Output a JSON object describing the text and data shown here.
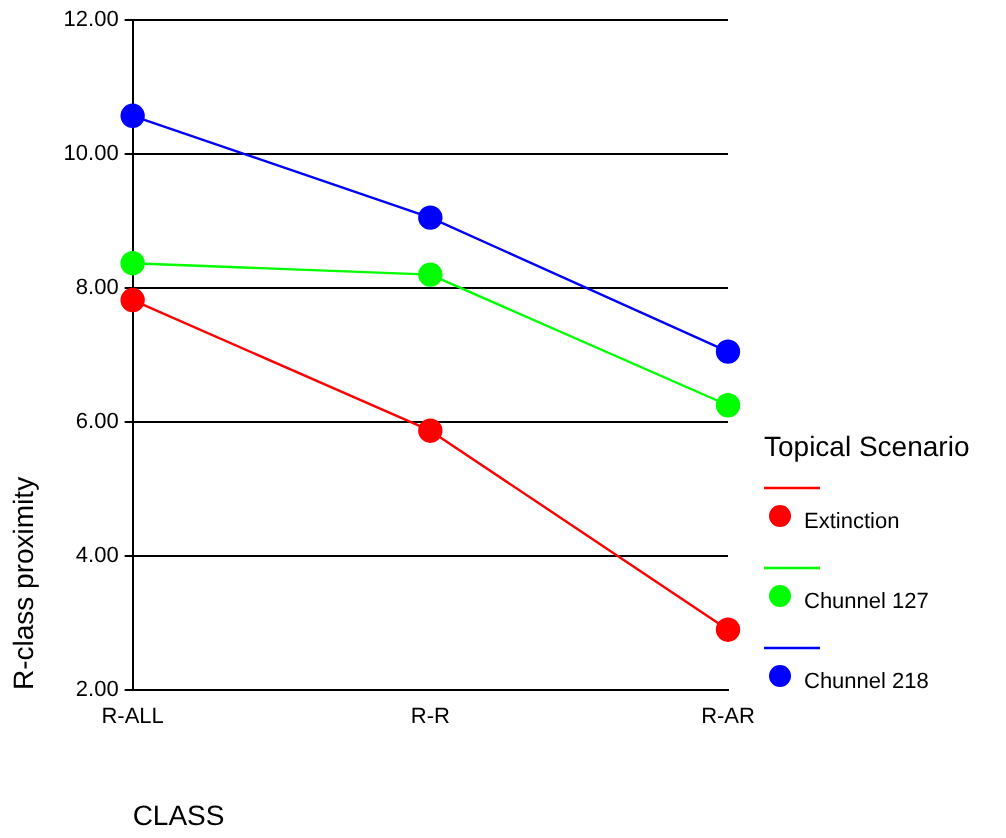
{
  "chart_data": {
    "type": "line",
    "xlabel": "CLASS",
    "ylabel": "R-class proximity",
    "legend_title": "Topical Scenario",
    "categories": [
      "R-ALL",
      "R-R",
      "R-AR"
    ],
    "series": [
      {
        "name": "Extinction",
        "color": "#ff0000",
        "values": [
          7.82,
          5.87,
          2.9
        ]
      },
      {
        "name": "Chunnel 127",
        "color": "#00ff00",
        "values": [
          8.37,
          8.2,
          6.25
        ]
      },
      {
        "name": "Chunnel 218",
        "color": "#0000ff",
        "values": [
          10.57,
          9.05,
          7.05
        ]
      }
    ],
    "ylim": [
      2,
      12
    ],
    "yticks": [
      {
        "value": 2,
        "label": "2.00"
      },
      {
        "value": 4,
        "label": "4.00"
      },
      {
        "value": 6,
        "label": "6.00"
      },
      {
        "value": 8,
        "label": "8.00"
      },
      {
        "value": 10,
        "label": "10.00"
      },
      {
        "value": 12,
        "label": "12.00"
      }
    ],
    "grid": "y",
    "legend": "right",
    "marker": "circle",
    "line_style": "solid"
  }
}
